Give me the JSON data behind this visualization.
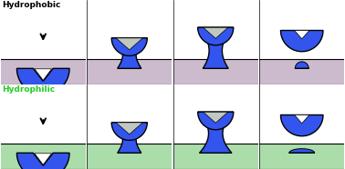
{
  "bg_color": "#ffffff",
  "blue_fill": "#3355ee",
  "blue_edge": "#000000",
  "gray_fill": "#c0c8c0",
  "hydrophobic_substrate": "#ccbbcc",
  "hydrophilic_substrate": "#aaddaa",
  "label_hydrophobic": "Hydrophobic",
  "label_hydrophilic": "Hydrophilic",
  "label_color_hydrophobic": "#000000",
  "label_color_hydrophilic": "#22cc22"
}
